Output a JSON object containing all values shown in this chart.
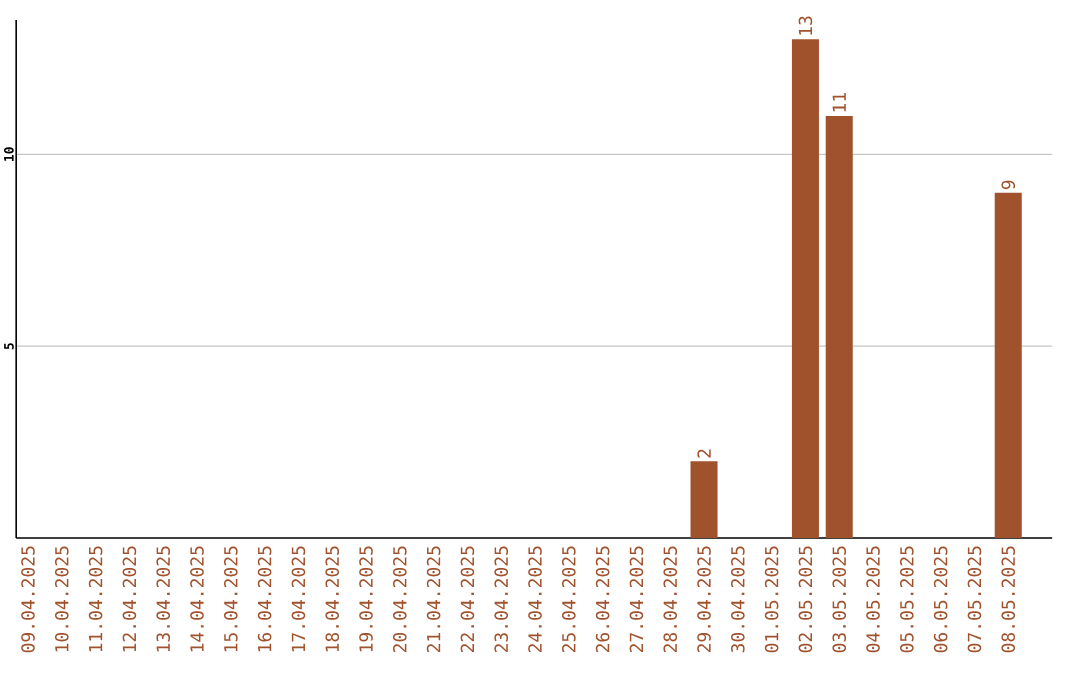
{
  "chart_data": {
    "type": "bar",
    "categories": [
      "09.04.2025",
      "10.04.2025",
      "11.04.2025",
      "12.04.2025",
      "13.04.2025",
      "14.04.2025",
      "15.04.2025",
      "16.04.2025",
      "17.04.2025",
      "18.04.2025",
      "19.04.2025",
      "20.04.2025",
      "21.04.2025",
      "22.04.2025",
      "23.04.2025",
      "24.04.2025",
      "25.04.2025",
      "26.04.2025",
      "27.04.2025",
      "28.04.2025",
      "29.04.2025",
      "30.04.2025",
      "01.05.2025",
      "02.05.2025",
      "03.05.2025",
      "04.05.2025",
      "05.05.2025",
      "06.05.2025",
      "07.05.2025",
      "08.05.2025"
    ],
    "values": [
      0,
      0,
      0,
      0,
      0,
      0,
      0,
      0,
      0,
      0,
      0,
      0,
      0,
      0,
      0,
      0,
      0,
      0,
      0,
      0,
      2,
      0,
      0,
      13,
      11,
      0,
      0,
      0,
      0,
      9
    ],
    "value_labels": [
      null,
      null,
      null,
      null,
      null,
      null,
      null,
      null,
      null,
      null,
      null,
      null,
      null,
      null,
      null,
      null,
      null,
      null,
      null,
      null,
      "2",
      null,
      null,
      "13",
      "11",
      null,
      null,
      null,
      null,
      "9"
    ],
    "color": "#a0522d",
    "ylim": [
      0,
      13.5
    ],
    "yticks": [
      5,
      10
    ],
    "grid": "y"
  }
}
